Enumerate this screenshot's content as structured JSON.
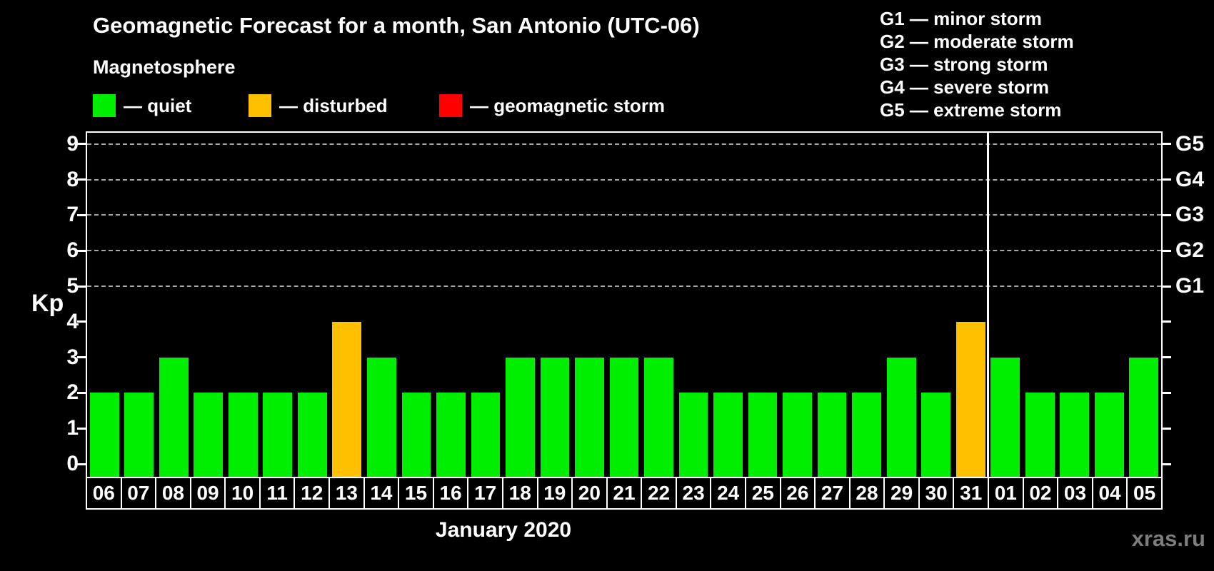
{
  "title": "Geomagnetic Forecast for a month, San Antonio (UTC-06)",
  "subtitle": "Magnetosphere",
  "legend": {
    "items": [
      {
        "key": "quiet",
        "label": "— quiet",
        "color": "#00ee00"
      },
      {
        "key": "disturbed",
        "label": "— disturbed",
        "color": "#ffc000"
      },
      {
        "key": "storm",
        "label": "— geomagnetic storm",
        "color": "#ff0000"
      }
    ]
  },
  "g_legend": [
    "G1 — minor storm",
    "G2 — moderate storm",
    "G3 — strong storm",
    "G4 — severe storm",
    "G5 — extreme storm"
  ],
  "watermark": "xras.ru",
  "chart_data": {
    "type": "bar",
    "title": "Geomagnetic Forecast for a month, San Antonio (UTC-06)",
    "xlabel": "January 2020",
    "ylabel": "Kp",
    "ylim": [
      0,
      9
    ],
    "grid": "dashed horizontal lines at Kp 5-9 only",
    "legend_position": "top",
    "categories": [
      "06",
      "07",
      "08",
      "09",
      "10",
      "11",
      "12",
      "13",
      "14",
      "15",
      "16",
      "17",
      "18",
      "19",
      "20",
      "21",
      "22",
      "23",
      "24",
      "25",
      "26",
      "27",
      "28",
      "29",
      "30",
      "31",
      "01",
      "02",
      "03",
      "04",
      "05"
    ],
    "values": [
      2,
      2,
      3,
      2,
      2,
      2,
      2,
      4,
      3,
      2,
      2,
      2,
      3,
      3,
      3,
      3,
      3,
      2,
      2,
      2,
      2,
      2,
      2,
      3,
      2,
      4,
      3,
      2,
      2,
      2,
      3
    ],
    "y_ticks": [
      0,
      1,
      2,
      3,
      4,
      5,
      6,
      7,
      8,
      9
    ],
    "gridlines_at": [
      5,
      6,
      7,
      8,
      9
    ],
    "right_axis": [
      {
        "kp": 5,
        "label": "G1"
      },
      {
        "kp": 6,
        "label": "G2"
      },
      {
        "kp": 7,
        "label": "G3"
      },
      {
        "kp": 8,
        "label": "G4"
      },
      {
        "kp": 9,
        "label": "G5"
      }
    ],
    "color_thresholds": {
      "disturbed": 4,
      "storm": 5
    },
    "separator_after_index": 25
  }
}
